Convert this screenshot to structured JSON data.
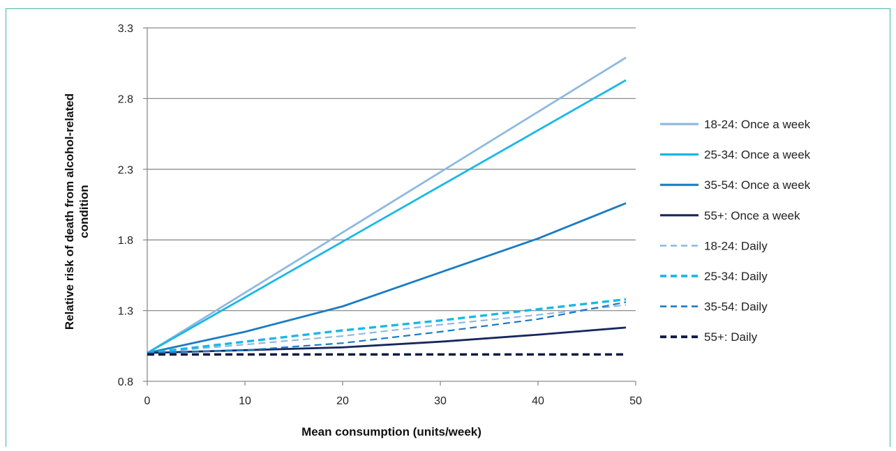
{
  "chart_data": {
    "type": "line",
    "title": "",
    "xlabel": "Mean consumption (units/week)",
    "ylabel_lines": [
      "Relative risk of death from alcohol-related",
      "condition"
    ],
    "xlim": [
      0,
      50
    ],
    "ylim": [
      0.8,
      3.3
    ],
    "xticks": [
      "0",
      "10",
      "20",
      "30",
      "40",
      "50"
    ],
    "yticks": [
      "0.8",
      "1.3",
      "1.8",
      "2.3",
      "2.8",
      "3.3"
    ],
    "grid": "horizontal",
    "legend_position": "right",
    "series": [
      {
        "name": "18-24: Once a week",
        "color": "#8fb9e0",
        "dash": "solid",
        "points": [
          [
            0,
            1.0
          ],
          [
            49,
            3.09
          ]
        ]
      },
      {
        "name": "25-34: Once a week",
        "color": "#1ab7e6",
        "dash": "solid",
        "points": [
          [
            0,
            1.0
          ],
          [
            49,
            2.93
          ]
        ]
      },
      {
        "name": "35-54: Once a week",
        "color": "#1a7bc4",
        "dash": "solid",
        "points": [
          [
            0,
            1.0
          ],
          [
            10,
            1.15
          ],
          [
            20,
            1.33
          ],
          [
            30,
            1.57
          ],
          [
            40,
            1.81
          ],
          [
            49,
            2.06
          ]
        ]
      },
      {
        "name": "55+: Once a week",
        "color": "#16285c",
        "dash": "solid",
        "points": [
          [
            0,
            1.0
          ],
          [
            20,
            1.04
          ],
          [
            30,
            1.08
          ],
          [
            40,
            1.13
          ],
          [
            49,
            1.18
          ]
        ]
      },
      {
        "name": "18-24: Daily",
        "color": "#8fb9e0",
        "dash": "dashed",
        "points": [
          [
            0,
            1.0
          ],
          [
            10,
            1.06
          ],
          [
            20,
            1.12
          ],
          [
            30,
            1.2
          ],
          [
            40,
            1.27
          ],
          [
            49,
            1.34
          ]
        ]
      },
      {
        "name": "25-34: Daily",
        "color": "#1ab7e6",
        "dash": "dashed",
        "points": [
          [
            0,
            1.0
          ],
          [
            10,
            1.08
          ],
          [
            20,
            1.16
          ],
          [
            30,
            1.23
          ],
          [
            40,
            1.31
          ],
          [
            49,
            1.38
          ]
        ]
      },
      {
        "name": "35-54: Daily",
        "color": "#1a7bc4",
        "dash": "dashed",
        "points": [
          [
            0,
            1.0
          ],
          [
            10,
            1.02
          ],
          [
            20,
            1.07
          ],
          [
            30,
            1.15
          ],
          [
            40,
            1.24
          ],
          [
            49,
            1.36
          ]
        ]
      },
      {
        "name": "55+: Daily",
        "color": "#0a1a40",
        "dash": "dashed",
        "points": [
          [
            0,
            0.99
          ],
          [
            20,
            0.99
          ],
          [
            40,
            0.99
          ],
          [
            49,
            0.99
          ]
        ]
      }
    ]
  }
}
